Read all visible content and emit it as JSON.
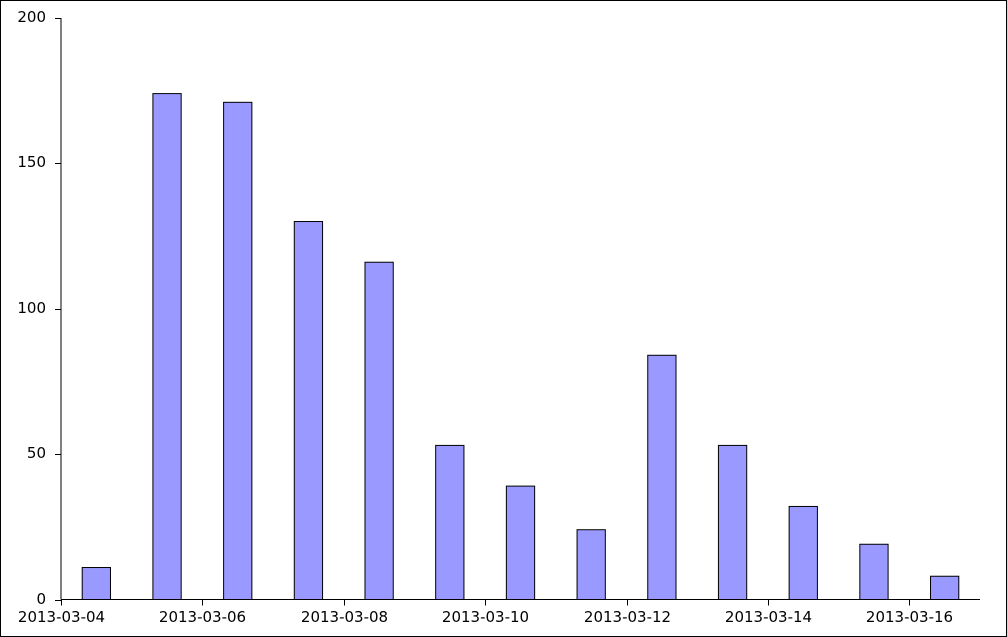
{
  "chart_data": {
    "type": "bar",
    "x": [
      "2013-03-04",
      "2013-03-05",
      "2013-03-06",
      "2013-03-07",
      "2013-03-08",
      "2013-03-09",
      "2013-03-10",
      "2013-03-11",
      "2013-03-12",
      "2013-03-13",
      "2013-03-14",
      "2013-03-15",
      "2013-03-16"
    ],
    "values": [
      11,
      174,
      171,
      130,
      116,
      53,
      39,
      24,
      84,
      53,
      32,
      19,
      8
    ],
    "color": "#9999ff",
    "xlim": [
      "2013-03-04",
      "2013-03-17"
    ],
    "xticks": [
      "2013-03-04",
      "2013-03-06",
      "2013-03-08",
      "2013-03-10",
      "2013-03-12",
      "2013-03-14",
      "2013-03-16"
    ],
    "ylim": [
      0,
      200
    ],
    "yticks": [
      0,
      50,
      100,
      150,
      200
    ]
  }
}
